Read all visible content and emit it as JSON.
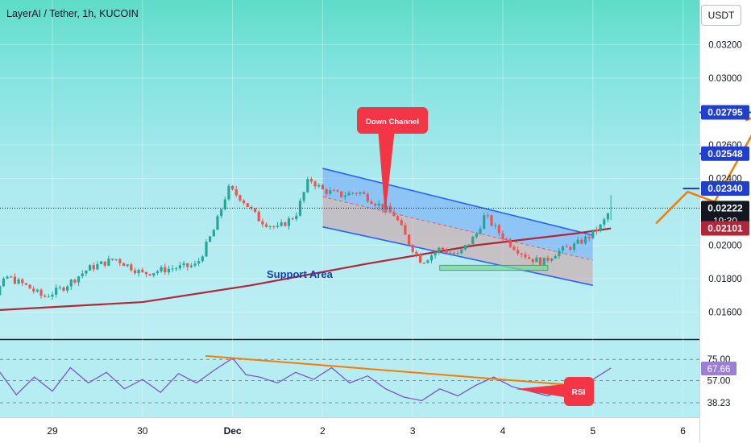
{
  "title": "LayerAI / Tether, 1h, KUCOIN",
  "currency_button": "USDT",
  "colors": {
    "up": "#26a69a",
    "down": "#ef5350",
    "ma": "#b2263a",
    "channel": "#2962ff",
    "arrow": "#f57c00",
    "callout": "#f23645",
    "rsi": "#7e57c2"
  },
  "chart_data": {
    "type": "candlestick",
    "title": "LayerAI / Tether, 1h, KUCOIN",
    "x_ticks": [
      "29",
      "30",
      "Dec",
      "2",
      "3",
      "4",
      "5",
      "6"
    ],
    "y_ticks": [
      "0.03200",
      "0.03000",
      "0.02600",
      "0.02400",
      "0.02000",
      "0.01800",
      "0.01600"
    ],
    "ylim": [
      0.0145,
      0.0335
    ],
    "price_labels": [
      {
        "text": "0.02795",
        "value": 0.02795,
        "kind": "target"
      },
      {
        "text": "0.02548",
        "value": 0.02548,
        "kind": "target"
      },
      {
        "text": "0.02340",
        "value": 0.0234,
        "kind": "target"
      },
      {
        "text": "0.02222",
        "value": 0.02222,
        "kind": "last",
        "sub": "19:30"
      },
      {
        "text": "0.02101",
        "value": 0.02101,
        "kind": "ma"
      }
    ],
    "annotations": [
      {
        "text": "Down Channel",
        "kind": "callout"
      },
      {
        "text": "Support Area",
        "kind": "zone_label"
      },
      {
        "text": "RSI",
        "kind": "callout"
      }
    ],
    "candle_close_path": [
      [
        -1.0,
        0.0172
      ],
      [
        -0.7,
        0.0166
      ],
      [
        -0.5,
        0.0181
      ],
      [
        -0.3,
        0.0176
      ],
      [
        -0.1,
        0.0169
      ],
      [
        0.1,
        0.0174
      ],
      [
        0.4,
        0.0186
      ],
      [
        0.7,
        0.0192
      ],
      [
        1.0,
        0.0183
      ],
      [
        1.3,
        0.0186
      ],
      [
        1.6,
        0.0188
      ],
      [
        1.8,
        0.021
      ],
      [
        1.95,
        0.0234
      ],
      [
        2.1,
        0.0228
      ],
      [
        2.3,
        0.0215
      ],
      [
        2.5,
        0.021
      ],
      [
        2.7,
        0.0218
      ],
      [
        2.85,
        0.024
      ],
      [
        3.0,
        0.0233
      ],
      [
        3.2,
        0.023
      ],
      [
        3.4,
        0.0232
      ],
      [
        3.6,
        0.0225
      ],
      [
        3.8,
        0.0218
      ],
      [
        3.95,
        0.0202
      ],
      [
        4.1,
        0.019
      ],
      [
        4.3,
        0.0198
      ],
      [
        4.5,
        0.0194
      ],
      [
        4.7,
        0.0206
      ],
      [
        4.8,
        0.0218
      ],
      [
        4.95,
        0.0208
      ],
      [
        5.1,
        0.02
      ],
      [
        5.3,
        0.0192
      ],
      [
        5.45,
        0.019
      ],
      [
        5.6,
        0.0196
      ],
      [
        5.8,
        0.02
      ],
      [
        5.95,
        0.0205
      ],
      [
        6.1,
        0.0212
      ],
      [
        6.2,
        0.02222
      ]
    ],
    "ma_path": [
      [
        -1.0,
        0.016
      ],
      [
        1.0,
        0.0166
      ],
      [
        2.2,
        0.0176
      ],
      [
        3.5,
        0.0189
      ],
      [
        4.7,
        0.02
      ],
      [
        5.8,
        0.0207
      ],
      [
        6.2,
        0.02101
      ]
    ],
    "channel": {
      "upper": [
        [
          3.0,
          0.0246
        ],
        [
          6.0,
          0.0206
        ]
      ],
      "lower": [
        [
          3.0,
          0.0211
        ],
        [
          6.0,
          0.0176
        ]
      ],
      "mid": [
        [
          3.0,
          0.0229
        ],
        [
          6.0,
          0.0191
        ]
      ]
    },
    "support_zone": {
      "x": [
        4.3,
        5.5
      ],
      "y": [
        0.0185,
        0.0188
      ]
    },
    "target_levels": [
      {
        "value": 0.0234,
        "x_from": 7.0
      },
      {
        "value": 0.02548,
        "x_from": 7.5
      },
      {
        "value": 0.02795,
        "x_from": 7.8
      }
    ],
    "projection": [
      [
        6.7,
        0.0213
      ],
      [
        7.05,
        0.0232
      ],
      [
        7.35,
        0.0226
      ],
      [
        7.9,
        0.0279
      ]
    ],
    "rsi": {
      "levels": [
        {
          "text": "75.00",
          "value": 75.0
        },
        {
          "text": "67.66",
          "value": 67.66,
          "kind": "current"
        },
        {
          "text": "57.00",
          "value": 57.0
        },
        {
          "text": "38.23",
          "value": 38.23
        }
      ],
      "ylim": [
        30,
        82
      ],
      "path": [
        [
          -1.0,
          62
        ],
        [
          -0.8,
          52
        ],
        [
          -0.6,
          66
        ],
        [
          -0.4,
          45
        ],
        [
          -0.2,
          60
        ],
        [
          0.0,
          48
        ],
        [
          0.2,
          68
        ],
        [
          0.4,
          55
        ],
        [
          0.6,
          64
        ],
        [
          0.8,
          50
        ],
        [
          1.0,
          58
        ],
        [
          1.2,
          47
        ],
        [
          1.4,
          63
        ],
        [
          1.6,
          55
        ],
        [
          1.8,
          66
        ],
        [
          2.0,
          76
        ],
        [
          2.15,
          62
        ],
        [
          2.3,
          60
        ],
        [
          2.5,
          55
        ],
        [
          2.7,
          64
        ],
        [
          2.9,
          58
        ],
        [
          3.1,
          68
        ],
        [
          3.3,
          55
        ],
        [
          3.5,
          61
        ],
        [
          3.7,
          50
        ],
        [
          3.9,
          43
        ],
        [
          4.1,
          40
        ],
        [
          4.3,
          50
        ],
        [
          4.5,
          44
        ],
        [
          4.7,
          53
        ],
        [
          4.9,
          60
        ],
        [
          5.1,
          52
        ],
        [
          5.3,
          48
        ],
        [
          5.5,
          44
        ],
        [
          5.7,
          50
        ],
        [
          5.9,
          54
        ],
        [
          6.0,
          58
        ],
        [
          6.2,
          67.66
        ]
      ],
      "trendline": [
        [
          1.7,
          78
        ],
        [
          5.8,
          53
        ]
      ]
    }
  }
}
